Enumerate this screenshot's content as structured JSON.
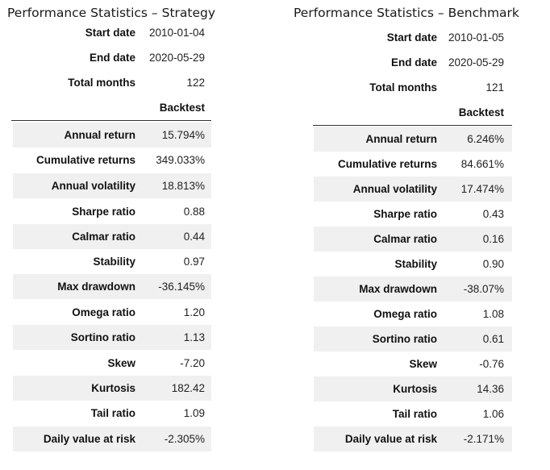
{
  "strategy": {
    "title": "Performance Statistics – Strategy",
    "meta": [
      {
        "label": "Start date",
        "value": "2010-01-04"
      },
      {
        "label": "End date",
        "value": "2020-05-29"
      },
      {
        "label": "Total months",
        "value": "122"
      }
    ],
    "column_header": "Backtest",
    "stats": [
      {
        "label": "Annual return",
        "value": "15.794%"
      },
      {
        "label": "Cumulative returns",
        "value": "349.033%"
      },
      {
        "label": "Annual volatility",
        "value": "18.813%"
      },
      {
        "label": "Sharpe ratio",
        "value": "0.88"
      },
      {
        "label": "Calmar ratio",
        "value": "0.44"
      },
      {
        "label": "Stability",
        "value": "0.97"
      },
      {
        "label": "Max drawdown",
        "value": "-36.145%"
      },
      {
        "label": "Omega ratio",
        "value": "1.20"
      },
      {
        "label": "Sortino ratio",
        "value": "1.13"
      },
      {
        "label": "Skew",
        "value": "-7.20"
      },
      {
        "label": "Kurtosis",
        "value": "182.42"
      },
      {
        "label": "Tail ratio",
        "value": "1.09"
      },
      {
        "label": "Daily value at risk",
        "value": "-2.305%"
      }
    ]
  },
  "benchmark": {
    "title": "Performance Statistics – Benchmark",
    "meta": [
      {
        "label": "Start date",
        "value": "2010-01-05"
      },
      {
        "label": "End date",
        "value": "2020-05-29"
      },
      {
        "label": "Total months",
        "value": "121"
      }
    ],
    "column_header": "Backtest",
    "stats": [
      {
        "label": "Annual return",
        "value": "6.246%"
      },
      {
        "label": "Cumulative returns",
        "value": "84.661%"
      },
      {
        "label": "Annual volatility",
        "value": "17.474%"
      },
      {
        "label": "Sharpe ratio",
        "value": "0.43"
      },
      {
        "label": "Calmar ratio",
        "value": "0.16"
      },
      {
        "label": "Stability",
        "value": "0.90"
      },
      {
        "label": "Max drawdown",
        "value": "-38.07%"
      },
      {
        "label": "Omega ratio",
        "value": "1.08"
      },
      {
        "label": "Sortino ratio",
        "value": "0.61"
      },
      {
        "label": "Skew",
        "value": "-0.76"
      },
      {
        "label": "Kurtosis",
        "value": "14.36"
      },
      {
        "label": "Tail ratio",
        "value": "1.06"
      },
      {
        "label": "Daily value at risk",
        "value": "-2.171%"
      }
    ]
  }
}
